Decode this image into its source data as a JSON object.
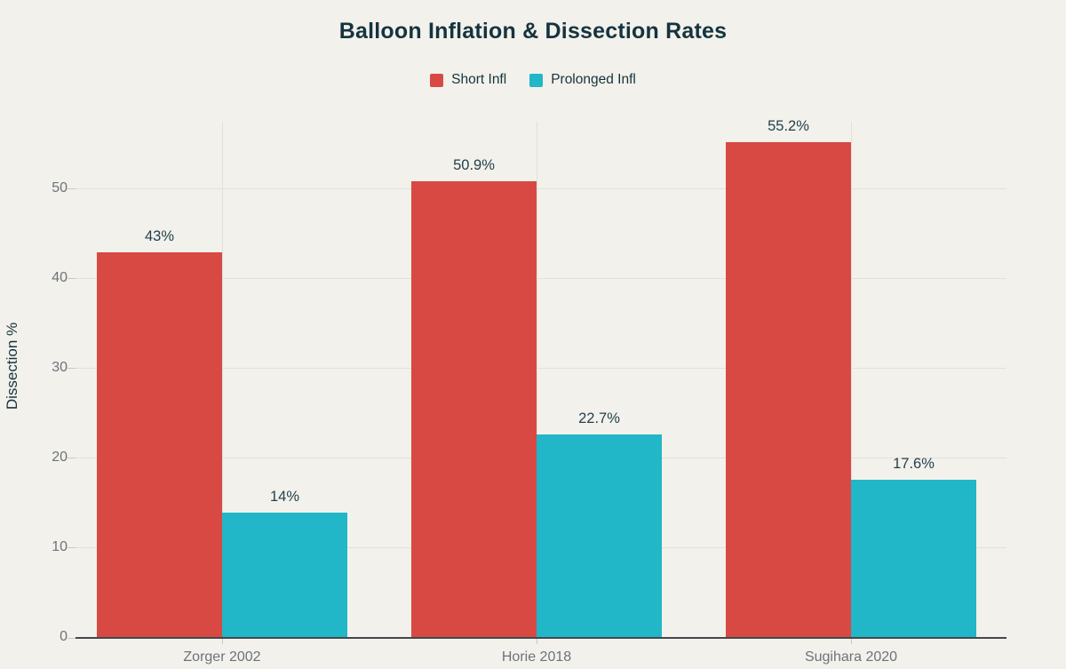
{
  "header": {
    "title": "Balloon Inflation & Dissection Rates"
  },
  "colors": {
    "bg": "#f2f1eb",
    "text-dark": "#16333f",
    "label-dark": "#24414e",
    "text-gray": "#6d737b",
    "grid": "#e1e0da",
    "tick": "#c9c8c1",
    "axis": "#43484b",
    "series-red": "#d94944",
    "series-teal": "#21b6c8"
  },
  "chart_data": {
    "type": "bar",
    "title": "Balloon Inflation & Dissection Rates",
    "categories": [
      "Zorger 2002",
      "Horie 2018",
      "Sugihara 2020"
    ],
    "series": [
      {
        "name": "Short Infl",
        "color": "#d94944",
        "values": [
          43,
          50.9,
          55.2
        ],
        "labels": [
          "43%",
          "50.9%",
          "55.2%"
        ]
      },
      {
        "name": "Prolonged Infl",
        "color": "#21b6c8",
        "values": [
          14,
          22.7,
          17.6
        ],
        "labels": [
          "14%",
          "22.7%",
          "17.6%"
        ]
      }
    ],
    "xlabel": "",
    "ylabel": "Dissection %",
    "yticks": [
      0,
      10,
      20,
      30,
      40,
      50
    ],
    "ylim": [
      0,
      57.5
    ],
    "grid": true,
    "legend_position": "top"
  }
}
